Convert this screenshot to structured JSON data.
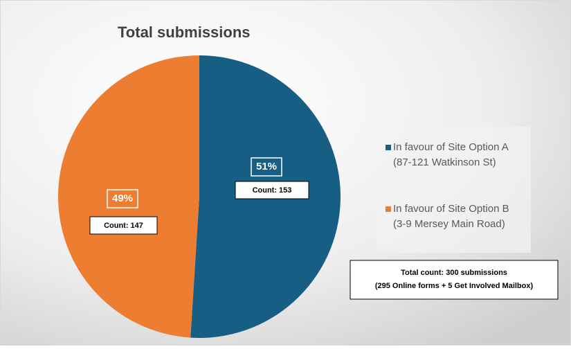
{
  "chart_data": {
    "type": "pie",
    "title": "Total submissions",
    "categories": [
      [
        "In favour of Site Option A",
        "(87-121 Watkinson St)"
      ],
      [
        "In favour of Site Option B",
        "(3-9 Mersey Main Road)"
      ]
    ],
    "values": [
      51,
      49
    ],
    "value_labels": [
      "51%",
      "49%"
    ],
    "counts": [
      153,
      147
    ],
    "count_labels": [
      "Count: 153",
      "Count: 147"
    ],
    "colors": [
      "#165e83",
      "#ed7d31"
    ],
    "legend": "right",
    "annotations": [
      "Total count: 300 submissions",
      "(295 Online forms + 5 Get Involved Mailbox)"
    ]
  }
}
